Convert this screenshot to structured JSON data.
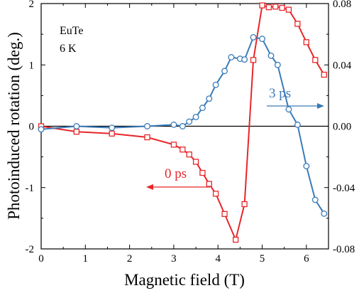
{
  "chart_data": {
    "type": "line",
    "xlabel": "Magnetic field (T)",
    "ylabel": "Photoinduced rotation (deg.)",
    "xlim": [
      0,
      6.5
    ],
    "ylim": [
      -2,
      2
    ],
    "y2lim": [
      -0.08,
      0.08
    ],
    "x_ticks": [
      "0",
      "1",
      "2",
      "3",
      "4",
      "5",
      "6"
    ],
    "y_ticks": [
      "-2",
      "-1",
      "0",
      "1",
      "2"
    ],
    "y2_ticks": [
      "-0.08",
      "-0.04",
      "0.00",
      "0.04",
      "0.08"
    ],
    "annotation_lines": [
      "EuTe",
      "6 K"
    ],
    "grid": false,
    "zero_line": true,
    "series": [
      {
        "name": "0 ps",
        "axis": "left",
        "color": "#e8262a",
        "marker": "square-open",
        "x": [
          0.0,
          0.8,
          1.6,
          2.4,
          3.0,
          3.2,
          3.35,
          3.5,
          3.65,
          3.8,
          3.95,
          4.15,
          4.4,
          4.6,
          4.8,
          5.0,
          5.15,
          5.3,
          5.45,
          5.6,
          5.8,
          6.0,
          6.2,
          6.4
        ],
        "y": [
          0.0,
          -0.09,
          -0.12,
          -0.18,
          -0.3,
          -0.38,
          -0.46,
          -0.58,
          -0.76,
          -0.94,
          -1.1,
          -1.43,
          -1.85,
          -1.27,
          1.08,
          1.97,
          1.94,
          1.95,
          1.93,
          1.9,
          1.67,
          1.37,
          1.08,
          0.84
        ]
      },
      {
        "name": "3 ps",
        "axis": "right",
        "color": "#3a7bb8",
        "marker": "circle-open",
        "x": [
          0.0,
          0.8,
          1.6,
          2.4,
          3.0,
          3.2,
          3.35,
          3.5,
          3.65,
          3.8,
          3.95,
          4.15,
          4.3,
          4.5,
          4.6,
          4.8,
          5.0,
          5.2,
          5.35,
          5.6,
          5.8,
          6.0,
          6.2,
          6.4
        ],
        "y": [
          -0.002,
          0.0,
          -0.001,
          0.0,
          0.001,
          0.0,
          0.003,
          0.006,
          0.012,
          0.018,
          0.027,
          0.036,
          0.045,
          0.044,
          0.0435,
          0.058,
          0.057,
          0.046,
          0.04,
          0.011,
          0.001,
          -0.026,
          -0.048,
          -0.057
        ]
      }
    ]
  },
  "labels": {
    "red": "0 ps",
    "blue": "3 ps"
  }
}
